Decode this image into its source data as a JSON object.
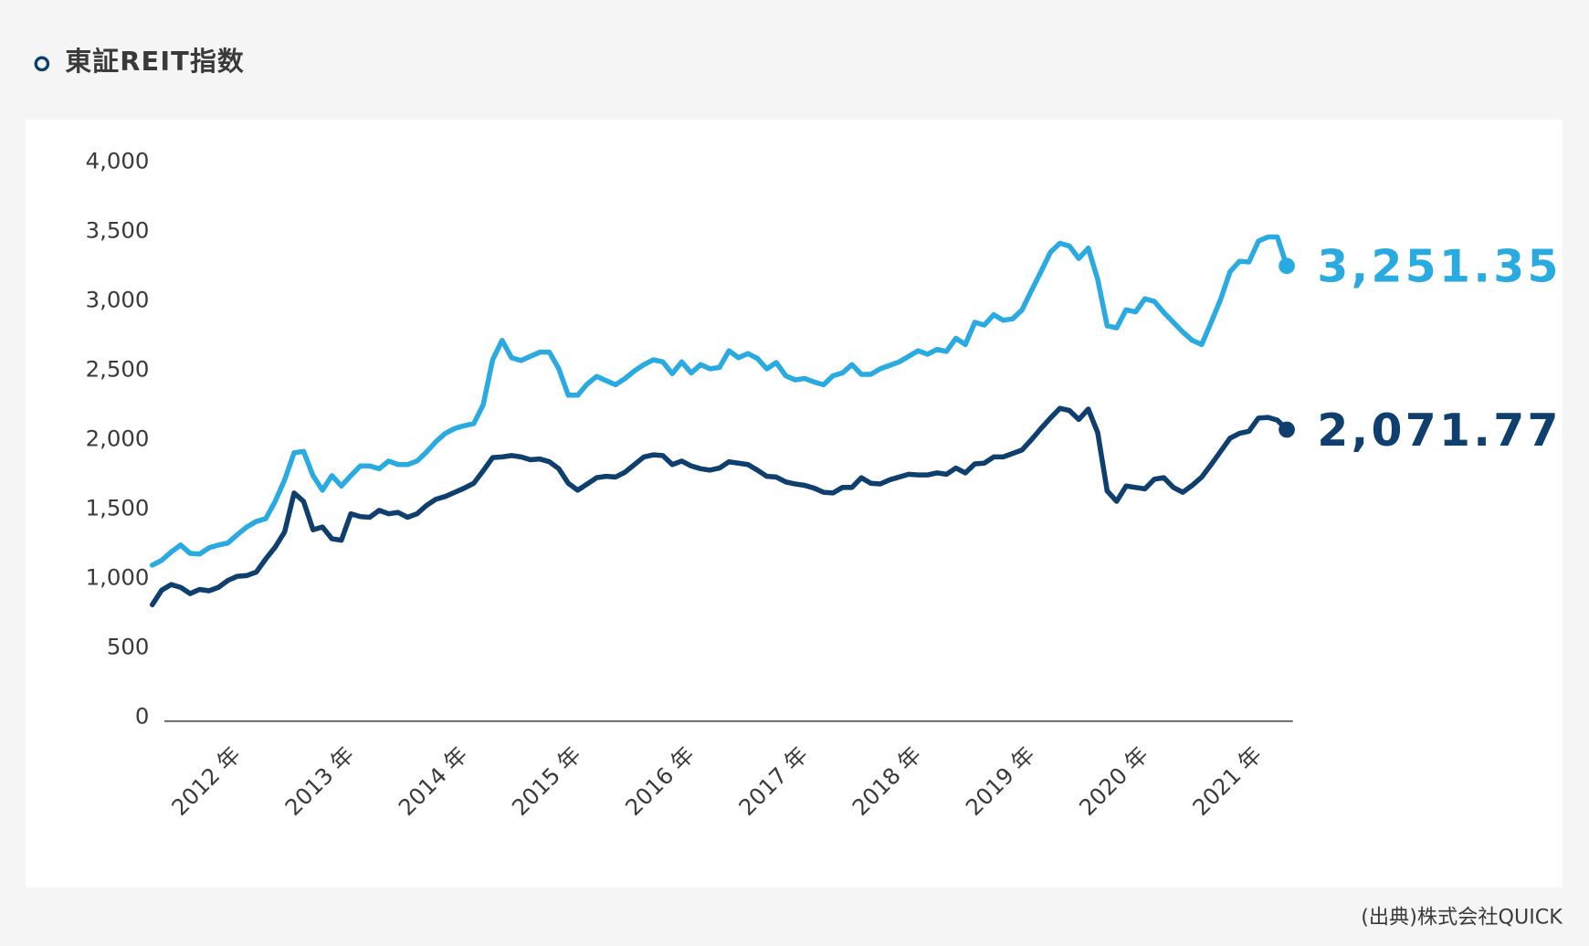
{
  "chart_data": {
    "type": "line",
    "title": "東証REIT指数",
    "source": "(出典)株式会社QUICK",
    "categories": [
      null,
      null,
      null,
      null,
      null,
      null,
      null,
      null,
      null,
      "2012 年",
      null,
      null,
      null,
      null,
      null,
      null,
      null,
      null,
      null,
      null,
      null,
      "2013 年",
      null,
      null,
      null,
      null,
      null,
      null,
      null,
      null,
      null,
      null,
      null,
      "2014 年",
      null,
      null,
      null,
      null,
      null,
      null,
      null,
      null,
      null,
      null,
      null,
      "2015 年",
      null,
      null,
      null,
      null,
      null,
      null,
      null,
      null,
      null,
      null,
      null,
      "2016 年",
      null,
      null,
      null,
      null,
      null,
      null,
      null,
      null,
      null,
      null,
      null,
      "2017 年",
      null,
      null,
      null,
      null,
      null,
      null,
      null,
      null,
      null,
      null,
      null,
      "2018 年",
      null,
      null,
      null,
      null,
      null,
      null,
      null,
      null,
      null,
      null,
      null,
      "2019 年",
      null,
      null,
      null,
      null,
      null,
      null,
      null,
      null,
      null,
      null,
      null,
      "2020 年",
      null,
      null,
      null,
      null,
      null,
      null,
      null,
      null,
      null,
      null,
      null,
      "2021 年",
      null,
      null,
      null
    ],
    "series": [
      {
        "color": "#29abe2",
        "values": [
          1095,
          1130,
          1190,
          1240,
          1180,
          1175,
          1220,
          1240,
          1255,
          1315,
          1370,
          1410,
          1430,
          1555,
          1710,
          1905,
          1915,
          1740,
          1635,
          1740,
          1665,
          1740,
          1810,
          1810,
          1790,
          1845,
          1820,
          1820,
          1845,
          1910,
          1985,
          2045,
          2080,
          2100,
          2115,
          2250,
          2575,
          2715,
          2590,
          2570,
          2600,
          2630,
          2630,
          2510,
          2320,
          2320,
          2400,
          2455,
          2425,
          2395,
          2440,
          2495,
          2540,
          2575,
          2560,
          2475,
          2560,
          2480,
          2540,
          2510,
          2520,
          2640,
          2590,
          2620,
          2585,
          2510,
          2555,
          2460,
          2430,
          2440,
          2415,
          2395,
          2460,
          2480,
          2540,
          2470,
          2470,
          2510,
          2535,
          2560,
          2600,
          2640,
          2615,
          2650,
          2635,
          2730,
          2685,
          2845,
          2825,
          2900,
          2860,
          2870,
          2935,
          3075,
          3210,
          3350,
          3415,
          3395,
          3305,
          3380,
          3155,
          2820,
          2805,
          2935,
          2920,
          3015,
          2995,
          2915,
          2845,
          2775,
          2715,
          2685,
          2845,
          3010,
          3210,
          3285,
          3280,
          3430,
          3460,
          3460,
          3251.35
        ],
        "value_labels": [
          null,
          null,
          null,
          null,
          null,
          null,
          null,
          null,
          null,
          null,
          null,
          null,
          null,
          null,
          null,
          null,
          null,
          null,
          null,
          null,
          null,
          null,
          null,
          null,
          null,
          null,
          null,
          null,
          null,
          null,
          null,
          null,
          null,
          null,
          null,
          null,
          null,
          null,
          null,
          null,
          null,
          null,
          null,
          null,
          null,
          null,
          null,
          null,
          null,
          null,
          null,
          null,
          null,
          null,
          null,
          null,
          null,
          null,
          null,
          null,
          null,
          null,
          null,
          null,
          null,
          null,
          null,
          null,
          null,
          null,
          null,
          null,
          null,
          null,
          null,
          null,
          null,
          null,
          null,
          null,
          null,
          null,
          null,
          null,
          null,
          null,
          null,
          null,
          null,
          null,
          null,
          null,
          null,
          null,
          null,
          null,
          null,
          null,
          null,
          null,
          null,
          null,
          null,
          null,
          null,
          null,
          null,
          null,
          null,
          null,
          null,
          null,
          null,
          null,
          null,
          null,
          null,
          null,
          null,
          null,
          "3,251.35"
        ]
      },
      {
        "color": "#0e3f6e",
        "values": [
          810,
          915,
          955,
          935,
          890,
          920,
          910,
          935,
          985,
          1015,
          1020,
          1045,
          1140,
          1225,
          1335,
          1615,
          1555,
          1350,
          1370,
          1285,
          1275,
          1465,
          1445,
          1440,
          1490,
          1465,
          1475,
          1440,
          1465,
          1525,
          1570,
          1590,
          1620,
          1650,
          1685,
          1775,
          1870,
          1875,
          1885,
          1875,
          1855,
          1860,
          1840,
          1790,
          1685,
          1635,
          1680,
          1725,
          1735,
          1730,
          1765,
          1820,
          1875,
          1890,
          1885,
          1820,
          1845,
          1810,
          1790,
          1780,
          1795,
          1840,
          1830,
          1820,
          1780,
          1735,
          1730,
          1695,
          1680,
          1670,
          1650,
          1620,
          1615,
          1655,
          1655,
          1725,
          1685,
          1680,
          1710,
          1730,
          1750,
          1745,
          1745,
          1760,
          1750,
          1795,
          1760,
          1825,
          1830,
          1875,
          1875,
          1900,
          1925,
          2000,
          2080,
          2155,
          2225,
          2210,
          2145,
          2220,
          2050,
          1630,
          1555,
          1665,
          1655,
          1645,
          1715,
          1725,
          1655,
          1620,
          1670,
          1730,
          1820,
          1915,
          2010,
          2045,
          2060,
          2155,
          2160,
          2140,
          2071.77
        ],
        "value_labels": [
          null,
          null,
          null,
          null,
          null,
          null,
          null,
          null,
          null,
          null,
          null,
          null,
          null,
          null,
          null,
          null,
          null,
          null,
          null,
          null,
          null,
          null,
          null,
          null,
          null,
          null,
          null,
          null,
          null,
          null,
          null,
          null,
          null,
          null,
          null,
          null,
          null,
          null,
          null,
          null,
          null,
          null,
          null,
          null,
          null,
          null,
          null,
          null,
          null,
          null,
          null,
          null,
          null,
          null,
          null,
          null,
          null,
          null,
          null,
          null,
          null,
          null,
          null,
          null,
          null,
          null,
          null,
          null,
          null,
          null,
          null,
          null,
          null,
          null,
          null,
          null,
          null,
          null,
          null,
          null,
          null,
          null,
          null,
          null,
          null,
          null,
          null,
          null,
          null,
          null,
          null,
          null,
          null,
          null,
          null,
          null,
          null,
          null,
          null,
          null,
          null,
          null,
          null,
          null,
          null,
          null,
          null,
          null,
          null,
          null,
          null,
          null,
          null,
          null,
          null,
          null,
          null,
          null,
          null,
          null,
          "2,071.77"
        ]
      }
    ],
    "ylim": [
      0,
      4000
    ],
    "yticks": [
      0,
      500,
      {
        "value": 1000,
        "label": "1,000"
      },
      {
        "value": 1500,
        "label": "1,500"
      },
      {
        "value": 2000,
        "label": "2,000"
      },
      {
        "value": 2500,
        "label": "2,500"
      },
      {
        "value": 3000,
        "label": "3,000"
      },
      {
        "value": 3500,
        "label": "3,500"
      },
      {
        "value": 4000,
        "label": "4,000"
      }
    ],
    "grid": false
  }
}
